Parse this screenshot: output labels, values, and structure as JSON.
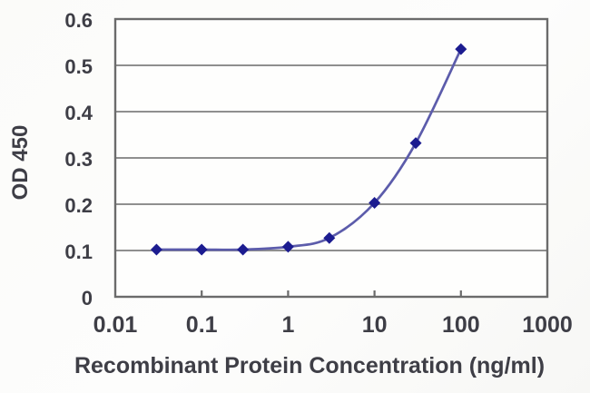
{
  "chart_data": {
    "type": "line",
    "title": "",
    "xlabel": "Recombinant Protein Concentration (ng/ml)",
    "ylabel": "OD 450",
    "x_scale": "log",
    "x": [
      0.03,
      0.1,
      0.3,
      1,
      3,
      10,
      30,
      100
    ],
    "y": [
      0.102,
      0.102,
      0.102,
      0.108,
      0.127,
      0.203,
      0.332,
      0.535
    ],
    "x_ticks": [
      0.01,
      0.1,
      1,
      10,
      100,
      1000
    ],
    "x_tick_labels": [
      "0.01",
      "0.1",
      "1",
      "10",
      "100",
      "1000"
    ],
    "y_ticks": [
      0,
      0.1,
      0.2,
      0.3,
      0.4,
      0.5,
      0.6
    ],
    "y_tick_labels": [
      "0",
      "0.1",
      "0.2",
      "0.3",
      "0.4",
      "0.5",
      "0.6"
    ],
    "xlim": [
      0.01,
      1000
    ],
    "ylim": [
      0,
      0.6
    ],
    "grid": "horizontal",
    "legend_position": "none",
    "marker": "diamond",
    "colors": {
      "line": "#5c5cab",
      "marker": "#1c1c90",
      "grid": "#8f8f8f",
      "border": "#6b6b6b",
      "text": "#3e3e46",
      "plot_background": "#fefefd",
      "figure_background": "#fbfbf9"
    }
  }
}
